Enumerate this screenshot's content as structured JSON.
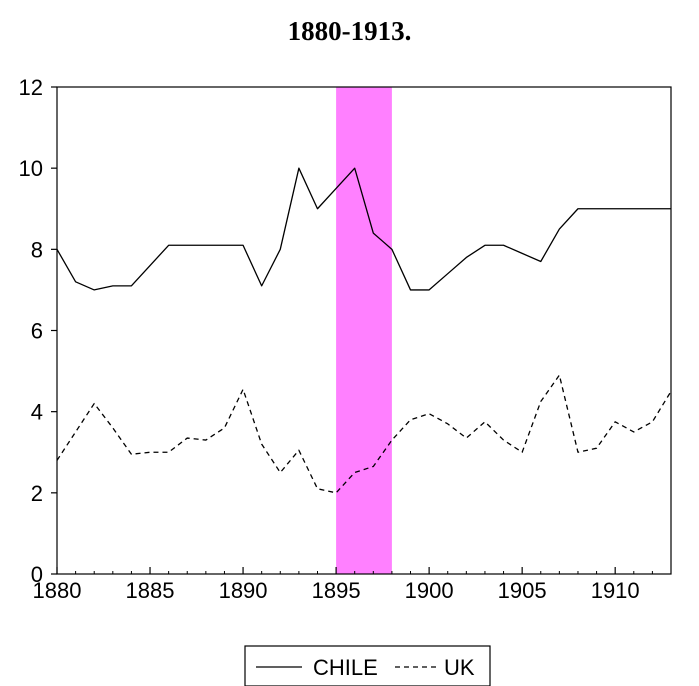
{
  "chart_data": {
    "type": "line",
    "title": "1880-1913.",
    "xlabel": "",
    "ylabel": "",
    "xlim": [
      1880,
      1913
    ],
    "ylim": [
      0,
      12
    ],
    "xticks": [
      1880,
      1885,
      1890,
      1895,
      1900,
      1905,
      1910
    ],
    "yticks": [
      0,
      2,
      4,
      6,
      8,
      10,
      12
    ],
    "grid": false,
    "legend_position": "bottom-center",
    "shaded_region": {
      "x_start": 1895,
      "x_end": 1898,
      "color": "#ff80ff"
    },
    "x": [
      1880,
      1881,
      1882,
      1883,
      1884,
      1885,
      1886,
      1887,
      1888,
      1889,
      1890,
      1891,
      1892,
      1893,
      1894,
      1895,
      1896,
      1897,
      1898,
      1899,
      1900,
      1901,
      1902,
      1903,
      1904,
      1905,
      1906,
      1907,
      1908,
      1909,
      1910,
      1911,
      1912,
      1913
    ],
    "series": [
      {
        "name": "CHILE",
        "style": "solid",
        "color": "#000000",
        "values": [
          8.0,
          7.2,
          7.0,
          7.1,
          7.1,
          7.6,
          8.1,
          8.1,
          8.1,
          8.1,
          8.1,
          7.1,
          8.0,
          10.0,
          9.0,
          9.5,
          10.0,
          8.4,
          8.0,
          7.0,
          7.0,
          7.4,
          7.8,
          8.1,
          8.1,
          7.9,
          7.7,
          8.5,
          9.0,
          9.0,
          9.0,
          9.0,
          9.0,
          9.0
        ]
      },
      {
        "name": "UK",
        "style": "dashed",
        "color": "#000000",
        "values": [
          2.8,
          3.5,
          4.2,
          3.6,
          2.95,
          3.0,
          3.0,
          3.35,
          3.3,
          3.6,
          4.55,
          3.2,
          2.5,
          3.05,
          2.1,
          2.0,
          2.5,
          2.65,
          3.3,
          3.8,
          3.95,
          3.7,
          3.35,
          3.75,
          3.3,
          3.0,
          4.25,
          4.9,
          3.0,
          3.1,
          3.75,
          3.5,
          3.75,
          4.5
        ]
      }
    ]
  }
}
